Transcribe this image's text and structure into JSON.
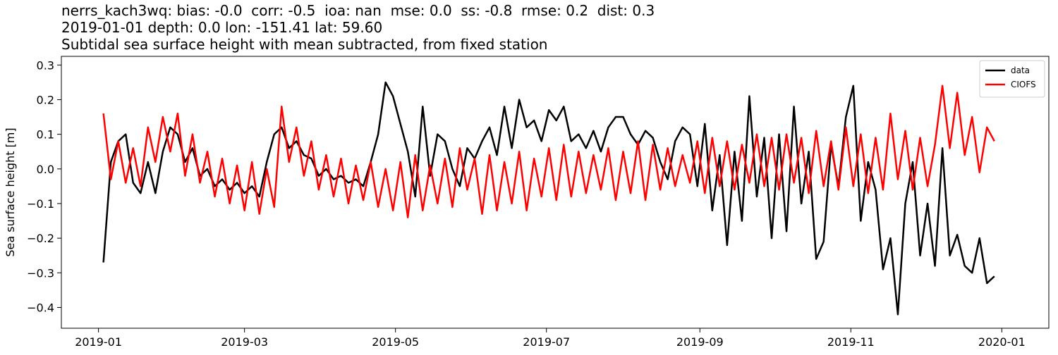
{
  "chart_data": {
    "type": "line",
    "title": [
      "nerrs_kach3wq: bias: -0.0  corr: -0.5  ioa: nan  mse: 0.0  ss: -0.8  rmse: 0.2  dist: 0.3",
      "2019-01-01 depth: 0.0 lon: -151.41 lat: 59.60",
      "Subtidal sea surface height with mean subtracted, from fixed station"
    ],
    "y_label": "Sea surface height [m]",
    "x": [
      "2019-01-03",
      "2019-01-06",
      "2019-01-09",
      "2019-01-12",
      "2019-01-15",
      "2019-01-18",
      "2019-01-21",
      "2019-01-24",
      "2019-01-27",
      "2019-01-30",
      "2019-02-02",
      "2019-02-05",
      "2019-02-08",
      "2019-02-11",
      "2019-02-14",
      "2019-02-17",
      "2019-02-20",
      "2019-02-23",
      "2019-02-26",
      "2019-03-01",
      "2019-03-04",
      "2019-03-07",
      "2019-03-10",
      "2019-03-13",
      "2019-03-16",
      "2019-03-19",
      "2019-03-22",
      "2019-03-25",
      "2019-03-28",
      "2019-03-31",
      "2019-04-03",
      "2019-04-06",
      "2019-04-09",
      "2019-04-12",
      "2019-04-15",
      "2019-04-18",
      "2019-04-21",
      "2019-04-24",
      "2019-04-27",
      "2019-04-30",
      "2019-05-03",
      "2019-05-06",
      "2019-05-09",
      "2019-05-12",
      "2019-05-15",
      "2019-05-18",
      "2019-05-21",
      "2019-05-24",
      "2019-05-27",
      "2019-05-30",
      "2019-06-02",
      "2019-06-05",
      "2019-06-08",
      "2019-06-11",
      "2019-06-14",
      "2019-06-17",
      "2019-06-20",
      "2019-06-23",
      "2019-06-26",
      "2019-06-29",
      "2019-07-02",
      "2019-07-05",
      "2019-07-08",
      "2019-07-11",
      "2019-07-14",
      "2019-07-17",
      "2019-07-20",
      "2019-07-23",
      "2019-07-26",
      "2019-07-29",
      "2019-08-01",
      "2019-08-04",
      "2019-08-07",
      "2019-08-10",
      "2019-08-13",
      "2019-08-16",
      "2019-08-19",
      "2019-08-22",
      "2019-08-25",
      "2019-08-28",
      "2019-08-31",
      "2019-09-03",
      "2019-09-06",
      "2019-09-09",
      "2019-09-12",
      "2019-09-15",
      "2019-09-18",
      "2019-09-21",
      "2019-09-24",
      "2019-09-27",
      "2019-09-30",
      "2019-10-03",
      "2019-10-06",
      "2019-10-09",
      "2019-10-12",
      "2019-10-15",
      "2019-10-18",
      "2019-10-21",
      "2019-10-24",
      "2019-10-27",
      "2019-10-30",
      "2019-11-02",
      "2019-11-05",
      "2019-11-08",
      "2019-11-11",
      "2019-11-14",
      "2019-11-17",
      "2019-11-20",
      "2019-11-23",
      "2019-11-26",
      "2019-11-29",
      "2019-12-02",
      "2019-12-05",
      "2019-12-08",
      "2019-12-11",
      "2019-12-14",
      "2019-12-17",
      "2019-12-20",
      "2019-12-23",
      "2019-12-26",
      "2019-12-29"
    ],
    "series": [
      {
        "name": "data",
        "color": "#000000",
        "values": [
          -0.27,
          0.02,
          0.08,
          0.1,
          -0.04,
          -0.07,
          0.02,
          -0.07,
          0.05,
          0.12,
          0.1,
          0.02,
          0.06,
          -0.02,
          0.0,
          -0.05,
          -0.03,
          -0.06,
          -0.04,
          -0.07,
          -0.05,
          -0.08,
          0.02,
          0.1,
          0.12,
          0.06,
          0.08,
          0.04,
          0.03,
          -0.02,
          0.0,
          -0.03,
          -0.02,
          -0.04,
          -0.03,
          -0.05,
          0.02,
          0.1,
          0.25,
          0.21,
          0.13,
          0.05,
          -0.08,
          0.18,
          -0.02,
          0.1,
          0.08,
          0.0,
          -0.05,
          0.06,
          0.03,
          0.08,
          0.12,
          0.04,
          0.18,
          0.06,
          0.2,
          0.12,
          0.14,
          0.08,
          0.17,
          0.14,
          0.18,
          0.08,
          0.1,
          0.06,
          0.11,
          0.05,
          0.12,
          0.15,
          0.15,
          0.1,
          0.07,
          0.11,
          0.09,
          0.02,
          -0.03,
          0.08,
          0.12,
          0.1,
          -0.05,
          0.13,
          -0.12,
          0.04,
          -0.22,
          0.05,
          -0.15,
          0.21,
          -0.08,
          0.09,
          -0.2,
          0.1,
          -0.18,
          0.18,
          -0.1,
          0.05,
          -0.26,
          -0.21,
          0.07,
          -0.05,
          0.15,
          0.24,
          -0.15,
          0.02,
          -0.06,
          -0.29,
          -0.2,
          -0.42,
          -0.1,
          0.02,
          -0.25,
          -0.1,
          -0.28,
          0.06,
          -0.25,
          -0.19,
          -0.28,
          -0.3,
          -0.2,
          -0.33,
          -0.31
        ]
      },
      {
        "name": "CIOFS",
        "color": "#ff0000",
        "values": [
          0.16,
          -0.03,
          0.08,
          -0.04,
          0.06,
          -0.05,
          0.12,
          0.02,
          0.15,
          0.05,
          0.16,
          -0.02,
          0.1,
          -0.04,
          0.05,
          -0.08,
          0.03,
          -0.1,
          0.01,
          -0.12,
          0.02,
          -0.13,
          0.0,
          -0.11,
          0.18,
          0.02,
          0.12,
          -0.02,
          0.08,
          -0.06,
          0.04,
          -0.08,
          0.03,
          -0.1,
          0.01,
          -0.09,
          0.02,
          -0.11,
          0.0,
          -0.12,
          0.02,
          -0.14,
          0.04,
          -0.12,
          0.01,
          -0.1,
          0.03,
          -0.11,
          0.06,
          -0.06,
          0.03,
          -0.13,
          0.04,
          -0.12,
          0.02,
          -0.1,
          0.05,
          -0.12,
          0.03,
          -0.08,
          0.06,
          -0.09,
          0.07,
          -0.08,
          0.05,
          -0.07,
          0.04,
          -0.06,
          0.06,
          -0.09,
          0.05,
          -0.07,
          0.08,
          -0.09,
          0.07,
          -0.06,
          0.06,
          -0.05,
          0.04,
          -0.04,
          0.08,
          -0.07,
          0.09,
          -0.05,
          0.08,
          -0.06,
          0.07,
          -0.04,
          0.1,
          -0.05,
          0.09,
          -0.06,
          0.1,
          -0.04,
          0.09,
          -0.07,
          0.11,
          -0.05,
          0.08,
          -0.06,
          0.12,
          -0.05,
          0.1,
          -0.07,
          0.09,
          -0.06,
          0.16,
          -0.03,
          0.11,
          -0.06,
          0.09,
          -0.05,
          0.07,
          0.24,
          0.06,
          0.22,
          0.04,
          0.15,
          -0.01,
          0.12,
          0.08
        ]
      }
    ],
    "xlim": [
      "2018-12-17",
      "2020-01-20"
    ],
    "xticks": [
      {
        "value": "2019-01-01",
        "label": "2019-01"
      },
      {
        "value": "2019-03-01",
        "label": "2019-03"
      },
      {
        "value": "2019-05-01",
        "label": "2019-05"
      },
      {
        "value": "2019-07-01",
        "label": "2019-07"
      },
      {
        "value": "2019-09-01",
        "label": "2019-09"
      },
      {
        "value": "2019-11-01",
        "label": "2019-11"
      },
      {
        "value": "2020-01-01",
        "label": "2020-01"
      }
    ],
    "ylim": [
      -0.46,
      0.325
    ],
    "yticks": [
      0.3,
      0.2,
      0.1,
      {
        "value": 0,
        "label": "0.0"
      },
      {
        "value": -0.1,
        "label": "−0.1"
      },
      {
        "value": -0.2,
        "label": "−0.2"
      },
      {
        "value": -0.3,
        "label": "−0.3"
      },
      {
        "value": -0.4,
        "label": "−0.4"
      }
    ],
    "grid": false,
    "legend": "upper right"
  }
}
